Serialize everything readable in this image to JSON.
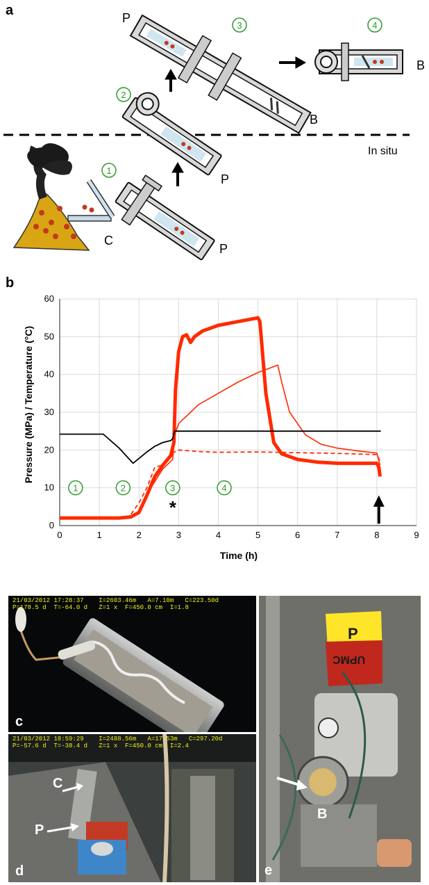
{
  "panels": {
    "a": "a",
    "b": "b",
    "c": "c",
    "d": "d",
    "e": "e"
  },
  "schematic": {
    "steps": [
      "①",
      "②",
      "③",
      "④"
    ],
    "labels": {
      "P": "P",
      "B": "B",
      "C": "C",
      "in_situ": "In situ"
    }
  },
  "colors": {
    "step_green": "#2e9b2e",
    "pressure_red": "#ff2a00",
    "temperature_black": "#000000",
    "chimney_yellow": "#d9a514",
    "smoke_black": "#1a1a1a"
  },
  "chart_data": {
    "type": "line",
    "xlabel": "Time (h)",
    "ylabel": "Pressure (MPa) / Temperature (°C)",
    "xlim": [
      0,
      9
    ],
    "ylim": [
      0,
      60
    ],
    "xticks": [
      "0",
      "1",
      "2",
      "3",
      "4",
      "5",
      "6",
      "7",
      "8",
      "9"
    ],
    "yticks": [
      "0",
      "10",
      "20",
      "30",
      "40",
      "50",
      "60"
    ],
    "grid": true,
    "series": [
      {
        "style": "thick-red",
        "x": [
          0,
          0.5,
          1,
          1.5,
          1.8,
          2.0,
          2.2,
          2.4,
          2.6,
          2.8,
          2.88,
          2.92,
          3.0,
          3.1,
          3.2,
          3.3,
          3.4,
          3.6,
          4.0,
          4.5,
          5.0,
          5.05,
          5.2,
          5.4,
          5.6,
          6.0,
          6.5,
          7.0,
          7.5,
          8.0,
          8.05,
          8.08
        ],
        "y": [
          2,
          2,
          2,
          2,
          2.3,
          3.5,
          8,
          13,
          16,
          18.5,
          22,
          36,
          46,
          50,
          50.5,
          48.5,
          50,
          51.5,
          53,
          54,
          55,
          54,
          35,
          22,
          19,
          17.5,
          16.8,
          16.5,
          16.5,
          16.5,
          15.5,
          13
        ]
      },
      {
        "style": "thin-red",
        "x": [
          2.0,
          2.3,
          2.6,
          2.85,
          2.9,
          3.0,
          3.3,
          3.5,
          4.0,
          4.5,
          5.0,
          5.5,
          5.6,
          5.8,
          6.2,
          6.6,
          7.0,
          7.5,
          8.0,
          8.08
        ],
        "y": [
          3,
          10,
          15,
          17.5,
          24,
          27,
          30,
          32,
          35,
          38,
          40.5,
          42.5,
          38,
          30,
          24,
          21.5,
          20.5,
          19.8,
          19.2,
          16
        ]
      },
      {
        "style": "dashed-red",
        "x": [
          1.8,
          2.0,
          2.2,
          2.4,
          2.6,
          2.8,
          3.0,
          3.5,
          4.0,
          5.0,
          6.0,
          7.0,
          8.0,
          8.08
        ],
        "y": [
          3,
          6,
          10,
          15.5,
          16,
          19,
          20,
          19.6,
          19.4,
          19.5,
          19.3,
          19.1,
          18.8,
          17
        ]
      },
      {
        "style": "black",
        "x": [
          0,
          1.1,
          1.5,
          1.85,
          2.2,
          2.4,
          2.6,
          2.8,
          2.85,
          2.9,
          3.5,
          4.5,
          5.5,
          6.5,
          7.5,
          8.1
        ],
        "y": [
          24.2,
          24.2,
          20.5,
          16.5,
          19.5,
          21,
          22,
          22.5,
          23,
          25,
          25,
          25,
          25,
          25,
          25,
          25
        ]
      }
    ],
    "annotations": {
      "steps": [
        {
          "text": "①",
          "x": 0.4,
          "y": 10
        },
        {
          "text": "②",
          "x": 1.6,
          "y": 10
        },
        {
          "text": "③",
          "x": 2.85,
          "y": 10
        },
        {
          "text": "④",
          "x": 4.15,
          "y": 10
        }
      ],
      "asterisk": {
        "text": "*",
        "x": 2.85,
        "y": 5
      }
    }
  },
  "photos": {
    "c_hud1": "21/03/2012 17:28:37    I=2603.46m   A=7.10m   C=223.50d",
    "c_hud2": "P=178.5 d  T=-64.0 d   Z=1 x  F=450.0 cm  I=1.8",
    "d_hud1": "21/03/2012 18:59:29    I=2488.56m   A=17.53m   C=297.20d",
    "d_hud2": "P=-57.6 d  T=-38.4 d   Z=1 x  F=450.0 cm  I=2.4",
    "d_C": "C",
    "d_P": "P",
    "e_P": "P",
    "e_B": "B",
    "e_box": "UPMC"
  }
}
